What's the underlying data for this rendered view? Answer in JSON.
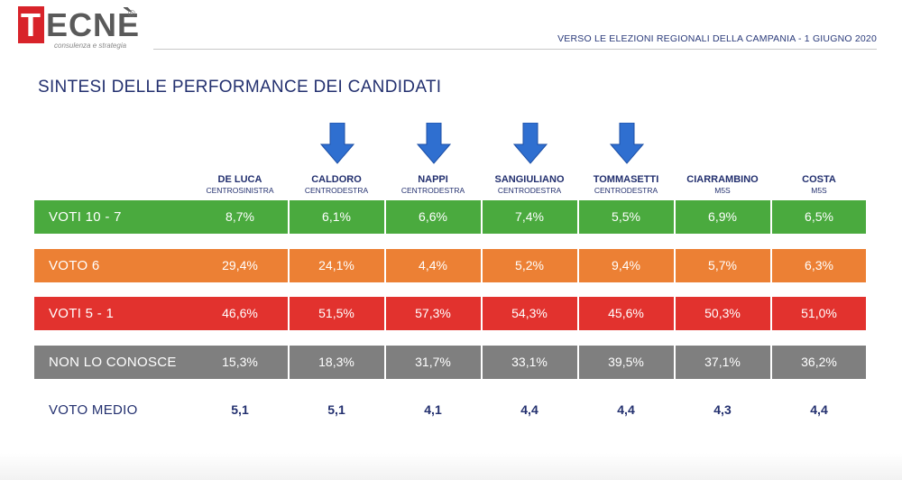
{
  "brand": {
    "logo_text": "TECNÈ",
    "logo_first_letter": "T",
    "logo_rest": "ECNÈ",
    "logo_registered": "®",
    "logo_tagline": "consulenza e strategia",
    "accent_color": "#d8232a"
  },
  "header": {
    "title": "VERSO LE ELEZIONI REGIONALI DELLA CAMPANIA - 1 GIUGNO 2020"
  },
  "main_title": "SINTESI DELLE PERFORMANCE DEI CANDIDATI",
  "arrow_icon": "arrow-down-icon",
  "chart_data": {
    "type": "table",
    "title": "SINTESI DELLE PERFORMANCE DEI CANDIDATI",
    "candidates": [
      {
        "name": "DE LUCA",
        "party": "CENTROSINISTRA",
        "arrow": false
      },
      {
        "name": "CALDORO",
        "party": "CENTRODESTRA",
        "arrow": true
      },
      {
        "name": "NAPPI",
        "party": "CENTRODESTRA",
        "arrow": true
      },
      {
        "name": "SANGIULIANO",
        "party": "CENTRODESTRA",
        "arrow": true
      },
      {
        "name": "TOMMASETTI",
        "party": "CENTRODESTRA",
        "arrow": true
      },
      {
        "name": "CIARRAMBINO",
        "party": "M5S",
        "arrow": false
      },
      {
        "name": "COSTA",
        "party": "M5S",
        "arrow": false
      }
    ],
    "rows": [
      {
        "label": "VOTI 10 - 7",
        "color": "#4aaa3e",
        "values": [
          "8,7%",
          "6,1%",
          "6,6%",
          "7,4%",
          "5,5%",
          "6,9%",
          "6,5%"
        ]
      },
      {
        "label": "VOTO 6",
        "color": "#ec8034",
        "values": [
          "29,4%",
          "24,1%",
          "4,4%",
          "5,2%",
          "9,4%",
          "5,7%",
          "6,3%"
        ]
      },
      {
        "label": "VOTI 5 - 1",
        "color": "#e2322e",
        "values": [
          "46,6%",
          "51,5%",
          "57,3%",
          "54,3%",
          "45,6%",
          "50,3%",
          "51,0%"
        ]
      },
      {
        "label": "NON LO CONOSCE",
        "color": "#7f7f7f",
        "values": [
          "15,3%",
          "18,3%",
          "31,7%",
          "33,1%",
          "39,5%",
          "37,1%",
          "36,2%"
        ]
      },
      {
        "label": "VOTO MEDIO",
        "color": "#ffffff",
        "values": [
          "5,1",
          "5,1",
          "4,1",
          "4,4",
          "4,4",
          "4,3",
          "4,4"
        ]
      }
    ]
  }
}
